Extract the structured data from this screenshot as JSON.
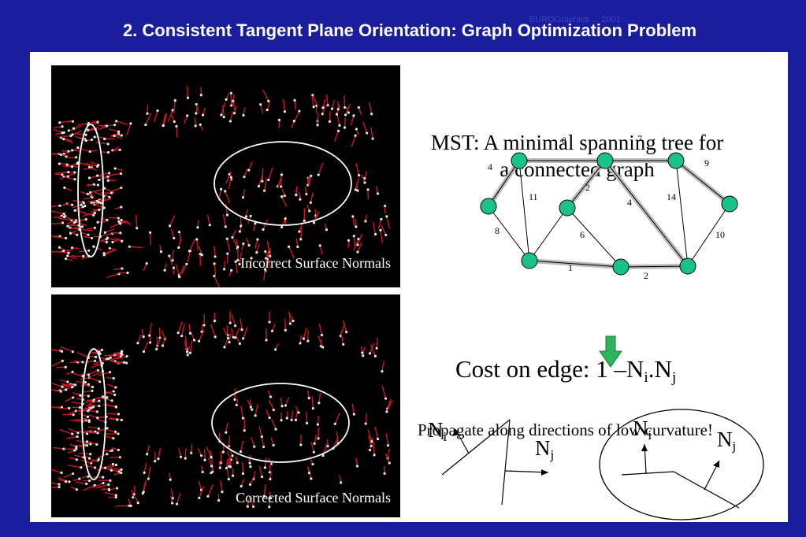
{
  "slide": {
    "title": "2. Consistent Tangent Plane Orientation: Graph Optimization Problem",
    "watermark": "EUROGraphics ... 2001"
  },
  "images": {
    "top_caption": "Incorrect Surface Normals",
    "bottom_caption": "Corrected Surface Normals"
  },
  "mst": {
    "title_line1": "MST: A minimal spanning tree for",
    "title_line2": "a connected graph",
    "node_color": "#19c28a",
    "tree_edge_color": "#b9b9b9",
    "edge_weights": [
      "8",
      "7",
      "4",
      "9",
      "2",
      "11",
      "14",
      "4",
      "8",
      "6",
      "10",
      "1",
      "2"
    ]
  },
  "cost": {
    "prefix": "Cost on edge: 1 –N",
    "sub_i": "i",
    "middle": ".N",
    "sub_j": "j"
  },
  "arrow_color": "#2db35a",
  "propagate": "Propagate along directions of low curvature!",
  "normals": {
    "N": "N",
    "i": "i",
    "j": "j"
  }
}
